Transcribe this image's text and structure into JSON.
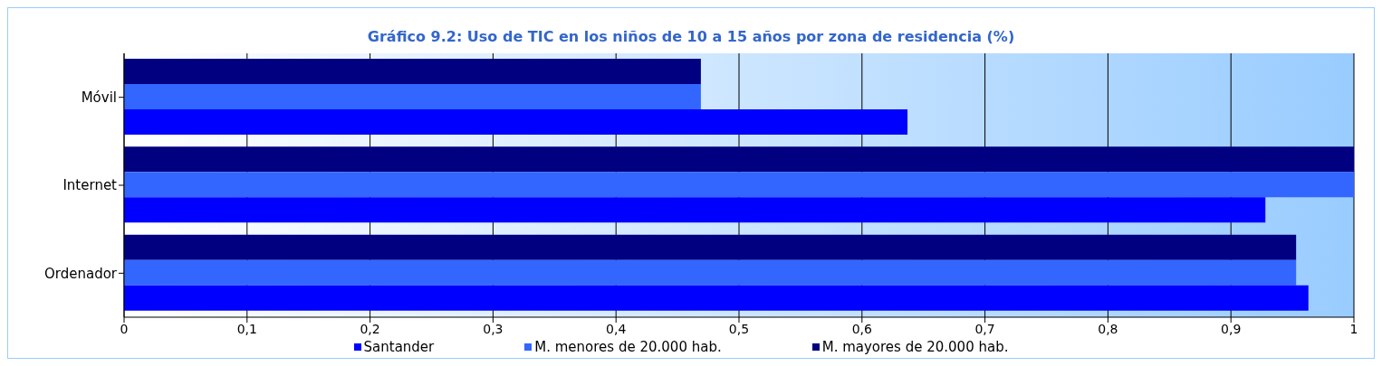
{
  "chart_data": {
    "type": "bar",
    "orientation": "horizontal",
    "title": "Gráfico 9.2: Uso de TIC en los niños de 10 a 15 años por zona de residencia (%)",
    "categories": [
      "Móvil",
      "Internet",
      "Ordenador"
    ],
    "series": [
      {
        "name": "Santander",
        "color": "#0000ff",
        "values": [
          0.637,
          0.928,
          0.963
        ]
      },
      {
        "name": "M. menores de 20.000 hab.",
        "color": "#3366ff",
        "values": [
          0.469,
          1.0,
          0.953
        ]
      },
      {
        "name": "M. mayores de 20.000 hab.",
        "color": "#000080",
        "values": [
          0.469,
          1.0,
          0.953
        ]
      }
    ],
    "xlim": [
      0,
      1
    ],
    "xticks": [
      0,
      {
        "value": 0.1,
        "label": "0,1"
      },
      {
        "value": 0.2,
        "label": "0,2"
      },
      {
        "value": 0.3,
        "label": "0,3"
      },
      {
        "value": 0.4,
        "label": "0,4"
      },
      {
        "value": 0.5,
        "label": "0,5"
      },
      {
        "value": 0.6,
        "label": "0,6"
      },
      {
        "value": 0.7,
        "label": "0,7"
      },
      {
        "value": 0.8,
        "label": "0,8"
      },
      {
        "value": 0.9,
        "label": "0,9"
      },
      1
    ],
    "grid": "x",
    "legend": "bottom"
  }
}
